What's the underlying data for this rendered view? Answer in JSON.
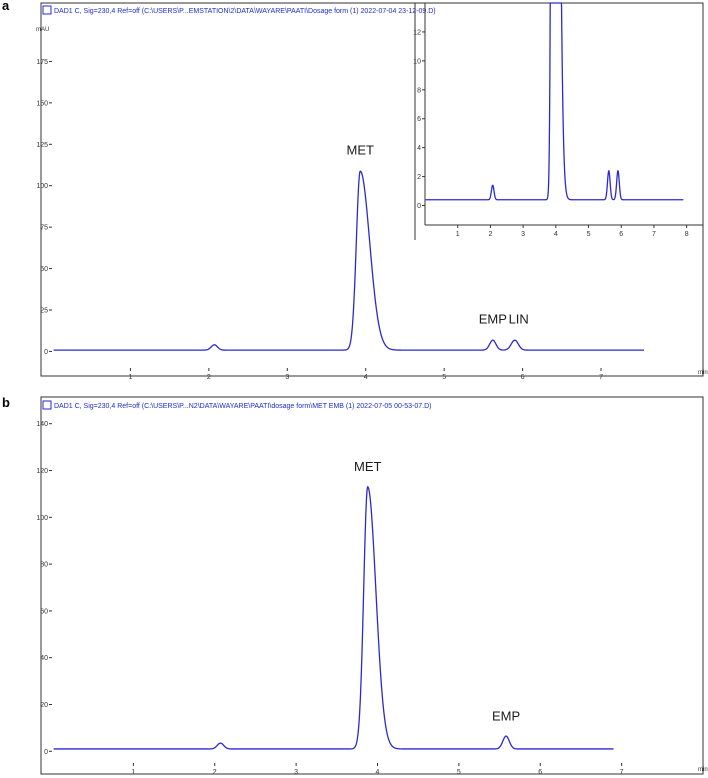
{
  "chart_data": [
    {
      "type": "line",
      "panel": "a",
      "header": "DAD1 C, Sig=230,4 Ref=off (C:\\USERS\\P...EMSTATION\\2\\DATA\\WAYARE\\PAATI\\Dosage form (1) 2022-07-04 23-12-09.D)",
      "xlabel": "min",
      "ylabel": "mAU",
      "xlim": [
        0,
        8.3
      ],
      "ylim": [
        -10,
        200
      ],
      "xticks": [
        1,
        2,
        3,
        4,
        5,
        6,
        7
      ],
      "yticks": [
        0,
        25,
        50,
        75,
        100,
        125,
        150,
        175
      ],
      "baseline": 0.8,
      "peaks": [
        {
          "rt": 2.07,
          "height": 3.2,
          "width": 0.04
        },
        {
          "rt": 3.93,
          "height": 108,
          "width": 0.05,
          "tail": 0.12
        },
        {
          "rt": 5.62,
          "height": 6.0,
          "width": 0.04
        },
        {
          "rt": 5.9,
          "height": 6.0,
          "width": 0.045
        }
      ],
      "x_end": 7.55,
      "annotations": [
        {
          "text": "MET",
          "x": 3.93,
          "y": 108
        },
        {
          "text": "EMP",
          "x": 5.62,
          "y": 6
        },
        {
          "text": "LIN",
          "x": 5.95,
          "y": 6
        }
      ],
      "inset": {
        "xlim": [
          0,
          8.5
        ],
        "ylim": [
          -1,
          14
        ],
        "xticks": [
          1,
          2,
          3,
          4,
          5,
          6,
          7,
          8
        ],
        "yticks": [
          0,
          2,
          4,
          6,
          8,
          10,
          12
        ],
        "baseline": 0.4,
        "peaks": [
          {
            "rt": 2.07,
            "height": 1.0,
            "width": 0.04
          },
          {
            "rt": 3.93,
            "height": 108,
            "width": 0.05,
            "tail": 0.12
          },
          {
            "rt": 5.62,
            "height": 2.0,
            "width": 0.04
          },
          {
            "rt": 5.9,
            "height": 2.0,
            "width": 0.04
          }
        ],
        "x_end": 7.9
      }
    },
    {
      "type": "line",
      "panel": "b",
      "header": "DAD1 C, Sig=230,4 Ref=off (C:\\USERS\\P...N2\\DATA\\WAYARE\\PAATI\\dosage form\\MET EMB (1) 2022-07-05 00-53-07.D)",
      "xlabel": "min",
      "ylabel": "mAU",
      "xlim": [
        0,
        8.0
      ],
      "ylim": [
        -5,
        145
      ],
      "xticks": [
        1,
        2,
        3,
        4,
        5,
        6,
        7
      ],
      "yticks": [
        0,
        20,
        40,
        60,
        80,
        100,
        120,
        140
      ],
      "baseline": 1.0,
      "peaks": [
        {
          "rt": 2.07,
          "height": 2.5,
          "width": 0.04
        },
        {
          "rt": 3.88,
          "height": 112,
          "width": 0.05,
          "tail": 0.1
        },
        {
          "rt": 5.58,
          "height": 5.5,
          "width": 0.04
        }
      ],
      "x_end": 6.9,
      "annotations": [
        {
          "text": "MET",
          "x": 3.88,
          "y": 112
        },
        {
          "text": "EMP",
          "x": 5.58,
          "y": 5.5
        }
      ]
    }
  ],
  "panels": {
    "a": "a",
    "b": "b"
  },
  "colors": {
    "trace": "#2a2ad0",
    "header": "#1f2bd1",
    "axis": "#333333"
  }
}
